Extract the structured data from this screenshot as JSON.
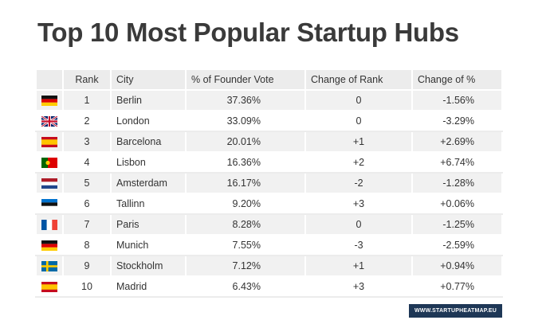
{
  "title": "Top 10 Most Popular Startup Hubs",
  "table": {
    "header": [
      "Rank",
      "City",
      "% of Founder Vote",
      "Change of Rank",
      "Change of %"
    ],
    "rows": [
      [
        "1",
        "Berlin",
        "37.36%",
        "0",
        "-1.56%"
      ],
      [
        "2",
        "London",
        "33.09%",
        "0",
        "-3.29%"
      ],
      [
        "3",
        "Barcelona",
        "20.01%",
        "+1",
        "+2.69%"
      ],
      [
        "4",
        "Lisbon",
        "16.36%",
        "+2",
        "+6.74%"
      ],
      [
        "5",
        "Amsterdam",
        "16.17%",
        "-2",
        "-1.28%"
      ],
      [
        "6",
        "Tallinn",
        "9.20%",
        "+3",
        "+0.06%"
      ],
      [
        "7",
        "Paris",
        "8.28%",
        "0",
        "-1.25%"
      ],
      [
        "8",
        "Munich",
        "7.55%",
        "-3",
        "-2.59%"
      ],
      [
        "9",
        "Stockholm",
        "7.12%",
        "+1",
        "+0.94%"
      ],
      [
        "10",
        "Madrid",
        "6.43%",
        "+3",
        "+0.77%"
      ]
    ]
  },
  "footer": "WWW.STARTUPHEATMAP.EU"
}
